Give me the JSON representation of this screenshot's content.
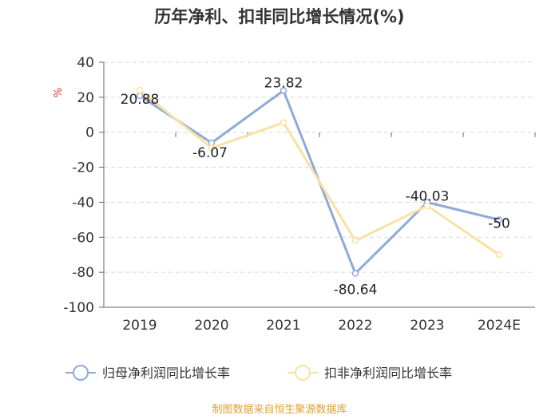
{
  "chart_data": {
    "type": "line",
    "title": "历年净利、扣非同比增长情况(%)",
    "ylabel": "%",
    "xlabel": "",
    "ylim": [
      -100,
      40
    ],
    "yticks": [
      40,
      20,
      0,
      -20,
      -40,
      -60,
      -80,
      -100
    ],
    "grid": true,
    "legend_position": "bottom",
    "categories": [
      "2019",
      "2020",
      "2021",
      "2022",
      "2023",
      "2024E"
    ],
    "series": [
      {
        "name": "归母净利润同比增长率",
        "color": "#8eaad8",
        "values": [
          20.88,
          -6.07,
          23.82,
          -80.64,
          -40.03,
          -50
        ],
        "labels": [
          "20.88",
          "-6.07",
          "23.82",
          "-80.64",
          "-40.03",
          "-50"
        ]
      },
      {
        "name": "扣非净利润同比增长率",
        "color": "#fbe0a4",
        "values": [
          24,
          -9,
          5.5,
          -62,
          -42,
          -70
        ]
      }
    ]
  },
  "source": {
    "text": "制图数据来自恒生聚源数据库",
    "color": "#e0a030"
  },
  "colors": {
    "unit": "#e03030",
    "axis": "#666666",
    "grid": "#d8d8d8"
  }
}
